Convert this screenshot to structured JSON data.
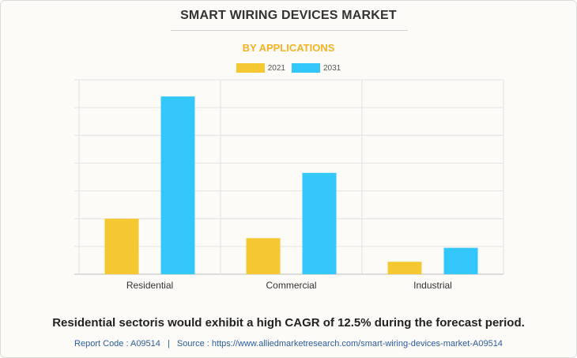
{
  "chart_data": {
    "type": "bar",
    "title": "SMART WIRING DEVICES MARKET",
    "subtitle": "BY APPLICATIONS",
    "categories": [
      "Residential",
      "Commercial",
      "Industrial"
    ],
    "series": [
      {
        "name": "2021",
        "values": [
          20,
          13,
          4.5
        ],
        "color": "#f5c832"
      },
      {
        "name": "2031",
        "values": [
          64,
          36.5,
          9.5
        ],
        "color": "#33c7fc"
      }
    ],
    "xlabel": "",
    "ylabel": "",
    "ylim": [
      0,
      70
    ],
    "grid": true,
    "legend": "top-center"
  },
  "summary": "Residential sectoris would exhibit a high CAGR of 12.5% during the forecast period.",
  "footer": {
    "report_code": "Report Code : A09514",
    "separator": "|",
    "source": "Source : https://www.alliedmarketresearch.com/smart-wiring-devices-market-A09514"
  },
  "colors": {
    "subtitle": "#f5b324",
    "footer": "#2a5d9f",
    "grid": "#e2e2e2"
  }
}
